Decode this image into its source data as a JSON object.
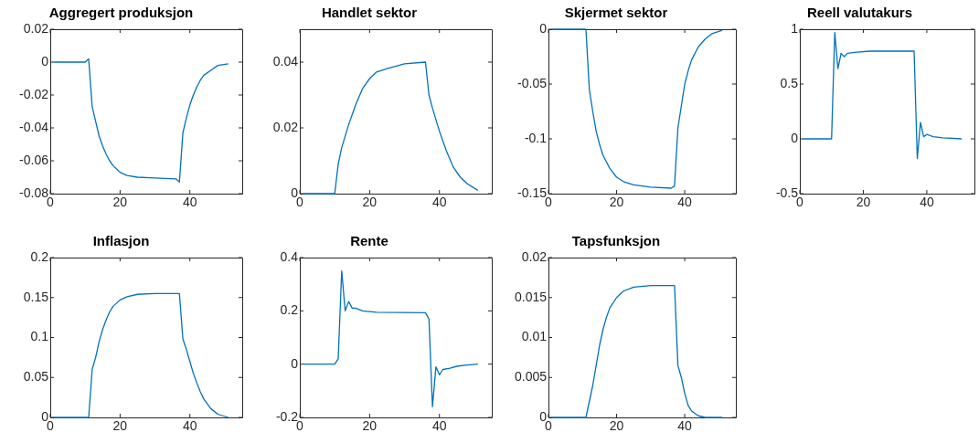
{
  "chart_data": [
    {
      "type": "line",
      "title": "Aggregert produksjon",
      "xlim": [
        0,
        55
      ],
      "xticks": [
        0,
        20,
        40
      ],
      "ylim": [
        -0.08,
        0.02
      ],
      "yticks": [
        -0.08,
        -0.06,
        -0.04,
        -0.02,
        0,
        0.02
      ],
      "series": [
        {
          "color": "#0072bd",
          "x": [
            1,
            5,
            10,
            11,
            12,
            13,
            14,
            15,
            16,
            17,
            18,
            19,
            20,
            22,
            25,
            30,
            36,
            37,
            38,
            39,
            40,
            41,
            42,
            43,
            44,
            46,
            48,
            51
          ],
          "values": [
            0,
            0,
            0,
            0.002,
            -0.027,
            -0.036,
            -0.045,
            -0.051,
            -0.056,
            -0.06,
            -0.063,
            -0.065,
            -0.067,
            -0.069,
            -0.07,
            -0.0705,
            -0.071,
            -0.073,
            -0.043,
            -0.034,
            -0.026,
            -0.02,
            -0.015,
            -0.011,
            -0.008,
            -0.005,
            -0.002,
            -0.001
          ]
        }
      ]
    },
    {
      "type": "line",
      "title": "Handlet sektor",
      "xlim": [
        0,
        55
      ],
      "xticks": [
        0,
        20,
        40
      ],
      "ylim": [
        0,
        0.05
      ],
      "yticks": [
        0,
        0.02,
        0.04
      ],
      "series": [
        {
          "color": "#0072bd",
          "x": [
            1,
            5,
            10,
            11,
            12,
            14,
            16,
            18,
            20,
            22,
            25,
            30,
            36,
            37,
            38,
            40,
            42,
            44,
            46,
            48,
            51
          ],
          "values": [
            0,
            0,
            0,
            0.009,
            0.014,
            0.021,
            0.027,
            0.032,
            0.035,
            0.037,
            0.038,
            0.0395,
            0.04,
            0.03,
            0.026,
            0.019,
            0.013,
            0.008,
            0.005,
            0.003,
            0.001
          ]
        }
      ]
    },
    {
      "type": "line",
      "title": "Skjermet sektor",
      "xlim": [
        0,
        55
      ],
      "xticks": [
        0,
        20,
        40
      ],
      "ylim": [
        -0.15,
        0
      ],
      "yticks": [
        -0.15,
        -0.1,
        -0.05,
        0
      ],
      "series": [
        {
          "color": "#0072bd",
          "x": [
            1,
            5,
            11,
            12,
            13,
            14,
            15,
            16,
            18,
            20,
            22,
            25,
            30,
            36,
            37,
            38,
            39,
            40,
            41,
            42,
            44,
            46,
            48,
            51
          ],
          "values": [
            0,
            0,
            0,
            -0.055,
            -0.075,
            -0.093,
            -0.105,
            -0.115,
            -0.127,
            -0.135,
            -0.139,
            -0.142,
            -0.144,
            -0.145,
            -0.143,
            -0.09,
            -0.07,
            -0.05,
            -0.038,
            -0.028,
            -0.016,
            -0.009,
            -0.004,
            -0.001
          ]
        }
      ]
    },
    {
      "type": "line",
      "title": "Reell valutakurs",
      "xlim": [
        0,
        55
      ],
      "xticks": [
        0,
        20,
        40
      ],
      "ylim": [
        -0.5,
        1
      ],
      "yticks": [
        -0.5,
        0,
        0.5,
        1
      ],
      "series": [
        {
          "color": "#0072bd",
          "x": [
            1,
            5,
            10,
            11,
            12,
            13,
            14,
            15,
            18,
            22,
            36,
            37,
            38,
            39,
            40,
            42,
            45,
            51
          ],
          "values": [
            0,
            0,
            0,
            0.97,
            0.64,
            0.78,
            0.75,
            0.78,
            0.79,
            0.8,
            0.8,
            -0.18,
            0.15,
            0.02,
            0.04,
            0.02,
            0.01,
            0
          ]
        }
      ]
    },
    {
      "type": "line",
      "title": "Inflasjon",
      "xlim": [
        0,
        55
      ],
      "xticks": [
        0,
        20,
        40
      ],
      "ylim": [
        0,
        0.2
      ],
      "yticks": [
        0,
        0.05,
        0.1,
        0.15,
        0.2
      ],
      "series": [
        {
          "color": "#0072bd",
          "x": [
            1,
            5,
            11,
            12,
            13,
            14,
            15,
            16,
            17,
            18,
            20,
            22,
            25,
            30,
            37,
            38,
            39,
            40,
            41,
            42,
            43,
            44,
            46,
            48,
            51
          ],
          "values": [
            0,
            0,
            0,
            0.06,
            0.075,
            0.095,
            0.11,
            0.122,
            0.132,
            0.139,
            0.147,
            0.151,
            0.154,
            0.155,
            0.155,
            0.098,
            0.085,
            0.07,
            0.055,
            0.043,
            0.032,
            0.023,
            0.011,
            0.004,
            0
          ]
        }
      ]
    },
    {
      "type": "line",
      "title": "Rente",
      "xlim": [
        0,
        55
      ],
      "xticks": [
        0,
        20,
        40
      ],
      "ylim": [
        -0.2,
        0.4
      ],
      "yticks": [
        -0.2,
        0,
        0.2,
        0.4
      ],
      "series": [
        {
          "color": "#0072bd",
          "x": [
            1,
            5,
            10,
            11,
            12,
            13,
            14,
            15,
            16,
            18,
            22,
            36,
            37,
            38,
            39,
            40,
            41,
            43,
            45,
            48,
            51
          ],
          "values": [
            0,
            0,
            0,
            0.02,
            0.35,
            0.2,
            0.235,
            0.21,
            0.21,
            0.2,
            0.195,
            0.193,
            0.17,
            -0.16,
            -0.01,
            -0.04,
            -0.02,
            -0.015,
            -0.008,
            -0.003,
            0
          ]
        }
      ]
    },
    {
      "type": "line",
      "title": "Tapsfunksjon",
      "xlim": [
        0,
        55
      ],
      "xticks": [
        0,
        20,
        40
      ],
      "ylim": [
        0,
        0.02
      ],
      "yticks": [
        0,
        0.005,
        0.01,
        0.015,
        0.02
      ],
      "series": [
        {
          "color": "#0072bd",
          "x": [
            1,
            5,
            11,
            12,
            13,
            14,
            15,
            16,
            17,
            18,
            20,
            22,
            25,
            30,
            37,
            38,
            39,
            40,
            41,
            42,
            44,
            46,
            51
          ],
          "values": [
            0,
            0,
            0,
            0.002,
            0.004,
            0.0065,
            0.009,
            0.011,
            0.0125,
            0.0137,
            0.015,
            0.0158,
            0.0163,
            0.0165,
            0.0165,
            0.0065,
            0.005,
            0.003,
            0.0015,
            0.0008,
            0.0002,
            0,
            0
          ]
        }
      ]
    }
  ]
}
